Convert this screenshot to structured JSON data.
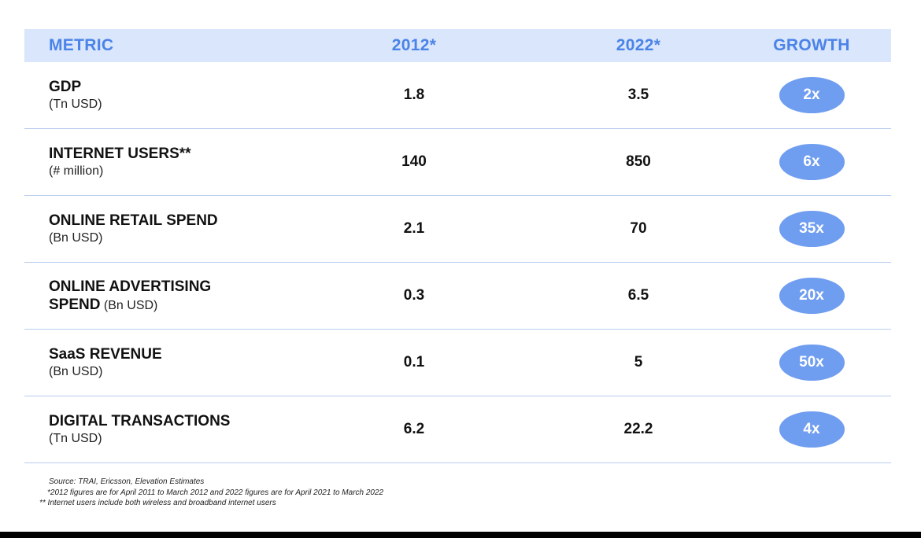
{
  "header": {
    "metric": "METRIC",
    "y2012": "2012*",
    "y2022": "2022*",
    "growth": "GROWTH"
  },
  "rows": [
    {
      "name": "GDP",
      "unit": "(Tn USD)",
      "v2012": "1.8",
      "v2022": "3.5",
      "growth": "2x"
    },
    {
      "name": "INTERNET USERS**",
      "unit": "(# million)",
      "v2012": "140",
      "v2022": "850",
      "growth": "6x"
    },
    {
      "name": "ONLINE RETAIL SPEND",
      "unit": "(Bn USD)",
      "v2012": "2.1",
      "v2022": "70",
      "growth": "35x"
    },
    {
      "name_line1": "ONLINE ADVERTISING",
      "name_line2": "SPEND",
      "unit": "(Bn USD)",
      "v2012": "0.3",
      "v2022": "6.5",
      "growth": "20x"
    },
    {
      "name": "SaaS REVENUE",
      "unit": "(Bn USD)",
      "v2012": "0.1",
      "v2022": "5",
      "growth": "50x"
    },
    {
      "name": "DIGITAL TRANSACTIONS",
      "unit": "(Tn USD)",
      "v2012": "6.2",
      "v2022": "22.2",
      "growth": "4x"
    }
  ],
  "footnotes": {
    "source": "Source: TRAI, Ericsson, Elevation Estimates",
    "note1": "*2012 figures are for April 2011 to March 2012 and 2022 figures are for April 2021 to March 2022",
    "note2": "** Internet users include both wireless and broadband internet users"
  },
  "colors": {
    "header_bg": "#d9e6fb",
    "header_text": "#4b83e8",
    "badge": "#6f9df0",
    "divider": "#b8cdef"
  }
}
